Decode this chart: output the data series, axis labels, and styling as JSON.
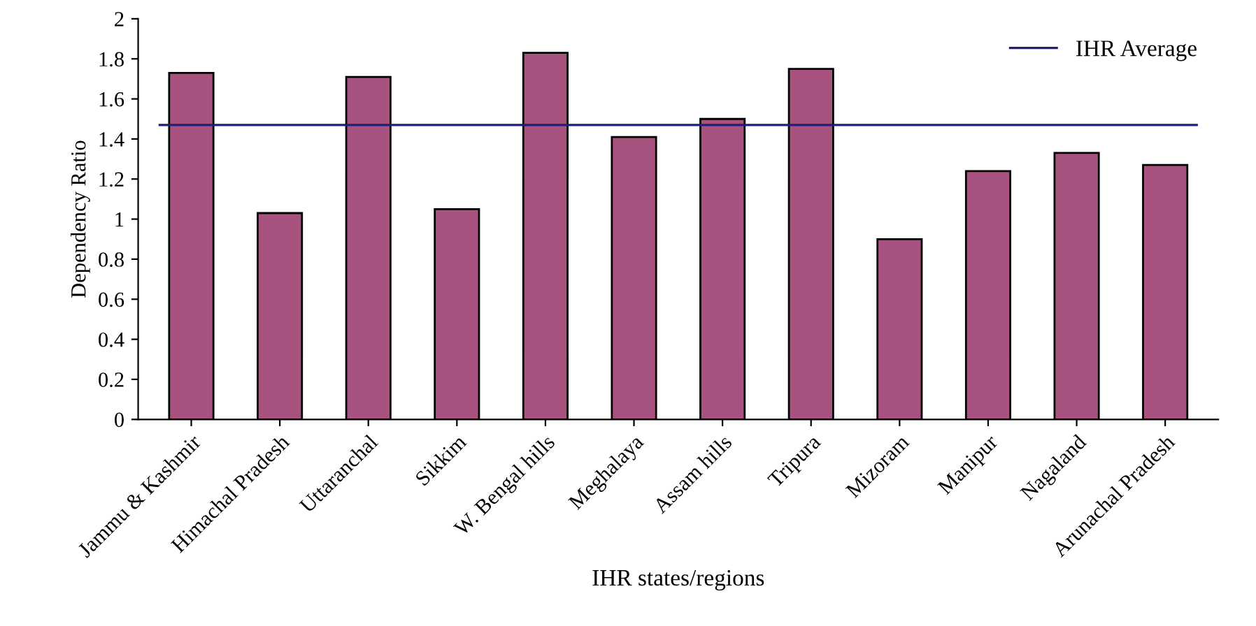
{
  "chart_data": {
    "type": "bar",
    "xlabel": "IHR states/regions",
    "ylabel": "Dependency Ratio",
    "categories": [
      "Jammu & Kashmir",
      "Himachal Pradesh",
      "Uttaranchal",
      "Sikkim",
      "W. Bengal hills",
      "Meghalaya",
      "Assam hills",
      "Tripura",
      "Mizoram",
      "Manipur",
      "Nagaland",
      "Arunachal Pradesh"
    ],
    "values": [
      1.73,
      1.03,
      1.71,
      1.05,
      1.83,
      1.41,
      1.5,
      1.75,
      0.9,
      1.24,
      1.33,
      1.27
    ],
    "color": "#a8527f",
    "ylim": [
      0,
      2
    ],
    "yticks": [
      0,
      0.2,
      0.4,
      0.6,
      0.8,
      1,
      1.2,
      1.4,
      1.6,
      1.8,
      2
    ],
    "ref_lines": [
      {
        "axis": "y",
        "value": 1.47,
        "label": "IHR Average",
        "color": "#1f1f7a"
      }
    ],
    "grid": false,
    "legend": "top right"
  }
}
